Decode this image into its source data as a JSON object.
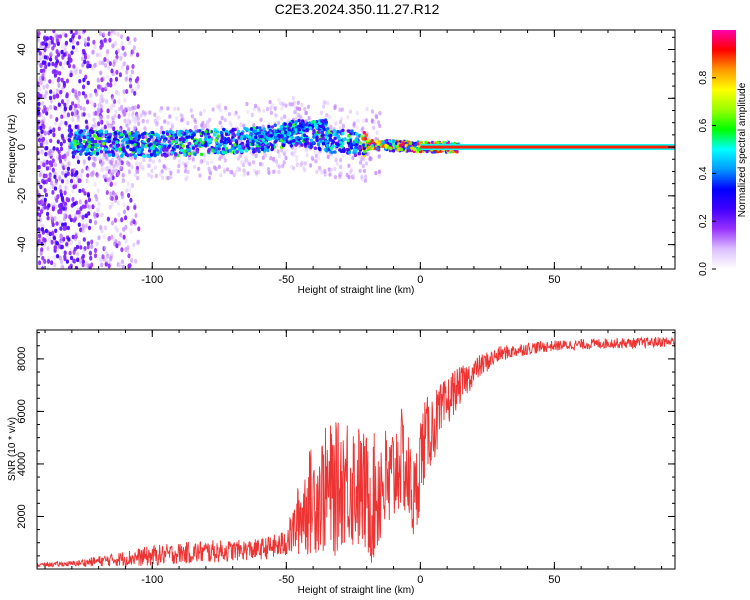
{
  "title": "C2E3.2024.350.11.27.R12",
  "chart_data": [
    {
      "type": "heatmap",
      "xlabel": "Height of straight line (km)",
      "ylabel": "Frequency (Hz)",
      "xlim": [
        -143,
        95
      ],
      "ylim": [
        -50,
        48
      ],
      "x_ticks": [
        "-100",
        "-50",
        "0",
        "50"
      ],
      "x_tick_values": [
        -100,
        -50,
        0,
        50
      ],
      "y_ticks": [
        "-40",
        "-20",
        "0",
        "20",
        "40"
      ],
      "y_tick_values": [
        -40,
        -20,
        0,
        20,
        40
      ],
      "colorbar": {
        "label": "Normalized spectral amplitude",
        "range": [
          0,
          1
        ],
        "ticks": [
          "0.0",
          "0.2",
          "0.4",
          "0.6",
          "0.8"
        ],
        "tick_values": [
          0,
          0.2,
          0.4,
          0.6,
          0.8
        ],
        "colors": [
          "#ffffff",
          "#dcc0ff",
          "#9932ff",
          "#4000ff",
          "#0000ff",
          "#0099ff",
          "#00ffff",
          "#00ff00",
          "#99ff00",
          "#ffff00",
          "#ff9900",
          "#ff0000",
          "#ff00aa"
        ]
      },
      "features": {
        "carrier_line": {
          "x_start": 0,
          "x_end": 95,
          "frequency": 0,
          "amplitude": 0.6
        },
        "main_band": {
          "x": [
            -131,
            -100,
            -80,
            -60,
            -45,
            -38,
            -30,
            -20,
            -10,
            0,
            15
          ],
          "frequency": [
            2,
            1,
            2,
            3,
            6,
            4,
            2,
            1,
            0.5,
            0,
            0
          ]
        },
        "upper_branch": {
          "x": [
            -60,
            -50,
            -40,
            -35
          ],
          "frequency": [
            4,
            6,
            9,
            10
          ]
        },
        "scatter_region": {
          "x": [
            -143,
            -105
          ],
          "frequency": [
            -50,
            48
          ]
        }
      }
    },
    {
      "type": "line",
      "xlabel": "Height of straight line (km)",
      "ylabel": "SNR (10 * v/v)",
      "xlim": [
        -143,
        95
      ],
      "ylim": [
        0,
        9100
      ],
      "color": "#ee3333",
      "x_ticks": [
        "-100",
        "-50",
        "0",
        "50"
      ],
      "x_tick_values": [
        -100,
        -50,
        0,
        50
      ],
      "y_ticks": [
        "2000",
        "4000",
        "6000",
        "8000"
      ],
      "y_tick_values": [
        2000,
        4000,
        6000,
        8000
      ],
      "envelope": {
        "x": [
          -143,
          -130,
          -120,
          -110,
          -100,
          -90,
          -80,
          -70,
          -60,
          -52,
          -48,
          -45,
          -42,
          -38,
          -35,
          -32,
          -30,
          -28,
          -25,
          -22,
          -20,
          -18,
          -16,
          -14,
          -12,
          -10,
          -8,
          -6,
          -4,
          -2,
          0,
          2,
          4,
          6,
          8,
          10,
          12,
          15,
          18,
          20,
          22,
          25,
          30,
          35,
          40,
          50,
          60,
          70,
          80,
          90,
          95
        ],
        "mean": [
          150,
          200,
          300,
          400,
          500,
          600,
          650,
          700,
          750,
          900,
          1300,
          2000,
          2500,
          2800,
          3000,
          3000,
          3200,
          3500,
          3300,
          3000,
          2800,
          2500,
          3000,
          3400,
          3000,
          3500,
          4200,
          4000,
          3200,
          2500,
          4300,
          5000,
          5300,
          5600,
          5900,
          6300,
          6700,
          7000,
          7300,
          7500,
          7700,
          7900,
          8200,
          8300,
          8400,
          8500,
          8550,
          8600,
          8600,
          8650,
          8650
        ],
        "amplitude": [
          80,
          100,
          200,
          300,
          400,
          400,
          450,
          400,
          400,
          500,
          800,
          1500,
          2000,
          2200,
          2500,
          2600,
          2400,
          2600,
          2600,
          2400,
          2400,
          2400,
          2600,
          2400,
          2200,
          2200,
          2000,
          2000,
          1800,
          1800,
          1800,
          1500,
          1400,
          1300,
          1200,
          1000,
          900,
          700,
          600,
          500,
          450,
          400,
          300,
          250,
          250,
          200,
          200,
          200,
          200,
          200,
          200
        ]
      }
    }
  ]
}
